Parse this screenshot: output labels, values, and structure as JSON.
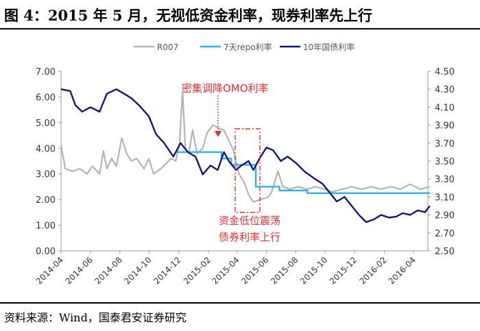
{
  "title": "图 4：2015 年 5 月，无视低资金利率，现券利率先上行",
  "source": "资料来源：Wind，国泰君安证券研究",
  "chart_data": {
    "type": "line",
    "legend_position": "top",
    "grid": false,
    "x_ticks": [
      "2014-04",
      "2014-06",
      "2014-08",
      "2014-10",
      "2014-12",
      "2015-02",
      "2015-04",
      "2015-06",
      "2015-08",
      "2015-10",
      "2015-12",
      "2016-02",
      "2016-04"
    ],
    "x_domain": [
      "2014-04",
      "2016-05"
    ],
    "y_left": {
      "range": [
        0,
        7
      ],
      "ticks": [
        "0.00",
        "1.00",
        "2.00",
        "3.00",
        "4.00",
        "5.00",
        "6.00",
        "7.00"
      ]
    },
    "y_right": {
      "range": [
        2.5,
        4.5
      ],
      "ticks": [
        "2.50",
        "2.70",
        "2.90",
        "3.10",
        "3.30",
        "3.50",
        "3.70",
        "3.90",
        "4.10",
        "4.30",
        "4.50"
      ]
    },
    "colors": {
      "r007": "#b3b3b3",
      "repo": "#2ab3e6",
      "bond": "#141478",
      "annotation": "#e03030"
    },
    "series": [
      {
        "name": "R007",
        "axis": "left",
        "points": [
          [
            "2014-04-01",
            4.1
          ],
          [
            "2014-04-10",
            3.2
          ],
          [
            "2014-04-25",
            3.1
          ],
          [
            "2014-05-10",
            3.2
          ],
          [
            "2014-05-25",
            3.0
          ],
          [
            "2014-06-05",
            3.3
          ],
          [
            "2014-06-20",
            3.0
          ],
          [
            "2014-06-28",
            3.9
          ],
          [
            "2014-07-05",
            3.2
          ],
          [
            "2014-07-15",
            3.6
          ],
          [
            "2014-07-25",
            3.3
          ],
          [
            "2014-08-05",
            4.4
          ],
          [
            "2014-08-15",
            3.8
          ],
          [
            "2014-08-25",
            3.5
          ],
          [
            "2014-09-05",
            3.6
          ],
          [
            "2014-09-20",
            3.2
          ],
          [
            "2014-09-30",
            3.6
          ],
          [
            "2014-10-10",
            3.0
          ],
          [
            "2014-10-25",
            3.2
          ],
          [
            "2014-11-05",
            3.4
          ],
          [
            "2014-11-15",
            3.6
          ],
          [
            "2014-11-25",
            3.5
          ],
          [
            "2014-12-03",
            4.2
          ],
          [
            "2014-12-09",
            6.2
          ],
          [
            "2014-12-15",
            4.0
          ],
          [
            "2014-12-22",
            3.8
          ],
          [
            "2014-12-30",
            4.7
          ],
          [
            "2015-01-08",
            3.8
          ],
          [
            "2015-01-20",
            4.0
          ],
          [
            "2015-01-29",
            4.6
          ],
          [
            "2015-02-10",
            4.9
          ],
          [
            "2015-02-20",
            4.8
          ],
          [
            "2015-03-05",
            4.7
          ],
          [
            "2015-03-15",
            4.3
          ],
          [
            "2015-03-25",
            3.9
          ],
          [
            "2015-04-05",
            3.0
          ],
          [
            "2015-04-15",
            2.7
          ],
          [
            "2015-04-25",
            2.2
          ],
          [
            "2015-05-05",
            1.9
          ],
          [
            "2015-05-20",
            2.0
          ],
          [
            "2015-06-05",
            2.1
          ],
          [
            "2015-06-12",
            2.3
          ],
          [
            "2015-06-25",
            3.1
          ],
          [
            "2015-07-05",
            2.5
          ],
          [
            "2015-07-20",
            2.4
          ],
          [
            "2015-08-05",
            2.5
          ],
          [
            "2015-08-25",
            2.4
          ],
          [
            "2015-09-10",
            2.5
          ],
          [
            "2015-09-30",
            2.4
          ],
          [
            "2015-10-15",
            2.3
          ],
          [
            "2015-11-05",
            2.4
          ],
          [
            "2015-11-25",
            2.5
          ],
          [
            "2015-12-15",
            2.4
          ],
          [
            "2016-01-05",
            2.5
          ],
          [
            "2016-01-25",
            2.4
          ],
          [
            "2016-02-15",
            2.5
          ],
          [
            "2016-03-05",
            2.4
          ],
          [
            "2016-03-25",
            2.6
          ],
          [
            "2016-04-15",
            2.4
          ],
          [
            "2016-05-05",
            2.5
          ]
        ]
      },
      {
        "name": "7天repo利率",
        "axis": "left",
        "points": [
          [
            "2014-11-25",
            3.85
          ],
          [
            "2015-02-28",
            3.85
          ],
          [
            "2015-02-28",
            3.6
          ],
          [
            "2015-03-20",
            3.6
          ],
          [
            "2015-03-20",
            3.35
          ],
          [
            "2015-05-10",
            3.35
          ],
          [
            "2015-05-10",
            2.5
          ],
          [
            "2015-06-28",
            2.5
          ],
          [
            "2015-06-28",
            2.35
          ],
          [
            "2015-08-25",
            2.35
          ],
          [
            "2015-08-25",
            2.25
          ],
          [
            "2016-05-05",
            2.25
          ]
        ]
      },
      {
        "name": "10年国债利率",
        "axis": "right",
        "points": [
          [
            "2014-04-01",
            4.3
          ],
          [
            "2014-04-20",
            4.28
          ],
          [
            "2014-05-01",
            4.12
          ],
          [
            "2014-05-15",
            4.05
          ],
          [
            "2014-06-01",
            4.1
          ],
          [
            "2014-06-20",
            4.05
          ],
          [
            "2014-07-05",
            4.25
          ],
          [
            "2014-07-25",
            4.3
          ],
          [
            "2014-08-10",
            4.25
          ],
          [
            "2014-08-25",
            4.2
          ],
          [
            "2014-09-10",
            4.12
          ],
          [
            "2014-09-30",
            4.0
          ],
          [
            "2014-10-15",
            3.8
          ],
          [
            "2014-11-01",
            3.7
          ],
          [
            "2014-11-20",
            3.55
          ],
          [
            "2014-12-05",
            3.7
          ],
          [
            "2014-12-20",
            3.6
          ],
          [
            "2015-01-05",
            3.55
          ],
          [
            "2015-01-20",
            3.35
          ],
          [
            "2015-02-05",
            3.45
          ],
          [
            "2015-02-20",
            3.4
          ],
          [
            "2015-03-05",
            3.6
          ],
          [
            "2015-03-15",
            3.5
          ],
          [
            "2015-03-30",
            3.4
          ],
          [
            "2015-04-10",
            3.45
          ],
          [
            "2015-04-25",
            3.5
          ],
          [
            "2015-05-05",
            3.4
          ],
          [
            "2015-05-20",
            3.55
          ],
          [
            "2015-06-01",
            3.65
          ],
          [
            "2015-06-15",
            3.62
          ],
          [
            "2015-07-01",
            3.5
          ],
          [
            "2015-07-15",
            3.55
          ],
          [
            "2015-08-01",
            3.48
          ],
          [
            "2015-08-20",
            3.38
          ],
          [
            "2015-09-10",
            3.3
          ],
          [
            "2015-09-25",
            3.25
          ],
          [
            "2015-10-10",
            3.15
          ],
          [
            "2015-10-25",
            3.05
          ],
          [
            "2015-11-10",
            3.1
          ],
          [
            "2015-11-25",
            3.0
          ],
          [
            "2015-12-10",
            2.9
          ],
          [
            "2015-12-25",
            2.82
          ],
          [
            "2016-01-10",
            2.85
          ],
          [
            "2016-01-25",
            2.9
          ],
          [
            "2016-02-10",
            2.87
          ],
          [
            "2016-02-25",
            2.88
          ],
          [
            "2016-03-10",
            2.92
          ],
          [
            "2016-03-25",
            2.9
          ],
          [
            "2016-04-10",
            2.95
          ],
          [
            "2016-04-25",
            2.93
          ],
          [
            "2016-05-05",
            3.0
          ]
        ]
      }
    ],
    "annotations": [
      {
        "id": "omo",
        "text": "密集调降OMO利率"
      },
      {
        "id": "box",
        "lines": [
          "资金低位震荡",
          "债券利率上行"
        ]
      }
    ]
  }
}
